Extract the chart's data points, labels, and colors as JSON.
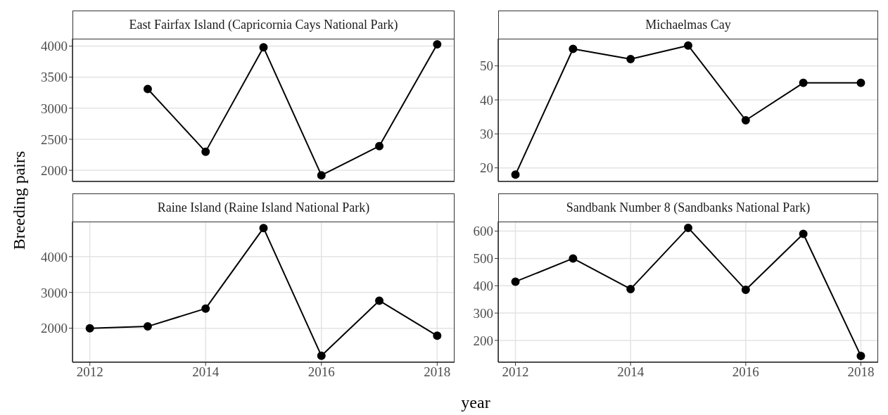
{
  "chart_data": [
    {
      "type": "line",
      "title": "East Fairfax Island (Capricornia Cays National Park)",
      "ylabel": "Breeding pairs",
      "x": [
        2013,
        2014,
        2015,
        2016,
        2017,
        2018
      ],
      "values": [
        3310,
        2300,
        3980,
        1920,
        2390,
        4030
      ],
      "color": "#000000",
      "marker": "circle",
      "line_style": "solid",
      "grid": true,
      "xlim": [
        2011.7,
        2018.3
      ],
      "xticks": [
        2012,
        2014,
        2016,
        2018
      ],
      "ylim": [
        1820,
        4120
      ],
      "yticks": [
        2000,
        2500,
        3000,
        3500,
        4000
      ],
      "tick_labels": "y"
    },
    {
      "type": "line",
      "title": "Michaelmas Cay",
      "x": [
        2012,
        2013,
        2014,
        2015,
        2016,
        2017,
        2018
      ],
      "values": [
        18,
        55,
        52,
        56,
        34,
        45,
        45
      ],
      "color": "#000000",
      "marker": "circle",
      "line_style": "solid",
      "grid": true,
      "xlim": [
        2011.7,
        2018.3
      ],
      "xticks": [
        2012,
        2014,
        2016,
        2018
      ],
      "ylim": [
        16,
        58
      ],
      "yticks": [
        20,
        30,
        40,
        50
      ],
      "tick_labels": "y"
    },
    {
      "type": "line",
      "title": "Raine Island (Raine Island National Park)",
      "xlabel": "year",
      "x": [
        2012,
        2013,
        2014,
        2015,
        2016,
        2017,
        2018
      ],
      "values": [
        2000,
        2050,
        2550,
        4800,
        1230,
        2770,
        1790
      ],
      "color": "#000000",
      "marker": "circle",
      "line_style": "solid",
      "grid": true,
      "xlim": [
        2011.7,
        2018.3
      ],
      "xticks": [
        2012,
        2014,
        2016,
        2018
      ],
      "ylim": [
        1050,
        4980
      ],
      "yticks": [
        2000,
        3000,
        4000
      ]
    },
    {
      "type": "line",
      "title": "Sandbank Number 8 (Sandbanks National Park)",
      "x": [
        2012,
        2013,
        2014,
        2015,
        2016,
        2017,
        2018
      ],
      "values": [
        415,
        500,
        388,
        612,
        385,
        590,
        143
      ],
      "color": "#000000",
      "marker": "circle",
      "line_style": "solid",
      "grid": true,
      "xlim": [
        2011.7,
        2018.3
      ],
      "xticks": [
        2012,
        2014,
        2016,
        2018
      ],
      "ylim": [
        120,
        635
      ],
      "yticks": [
        200,
        300,
        400,
        500,
        600
      ]
    }
  ]
}
